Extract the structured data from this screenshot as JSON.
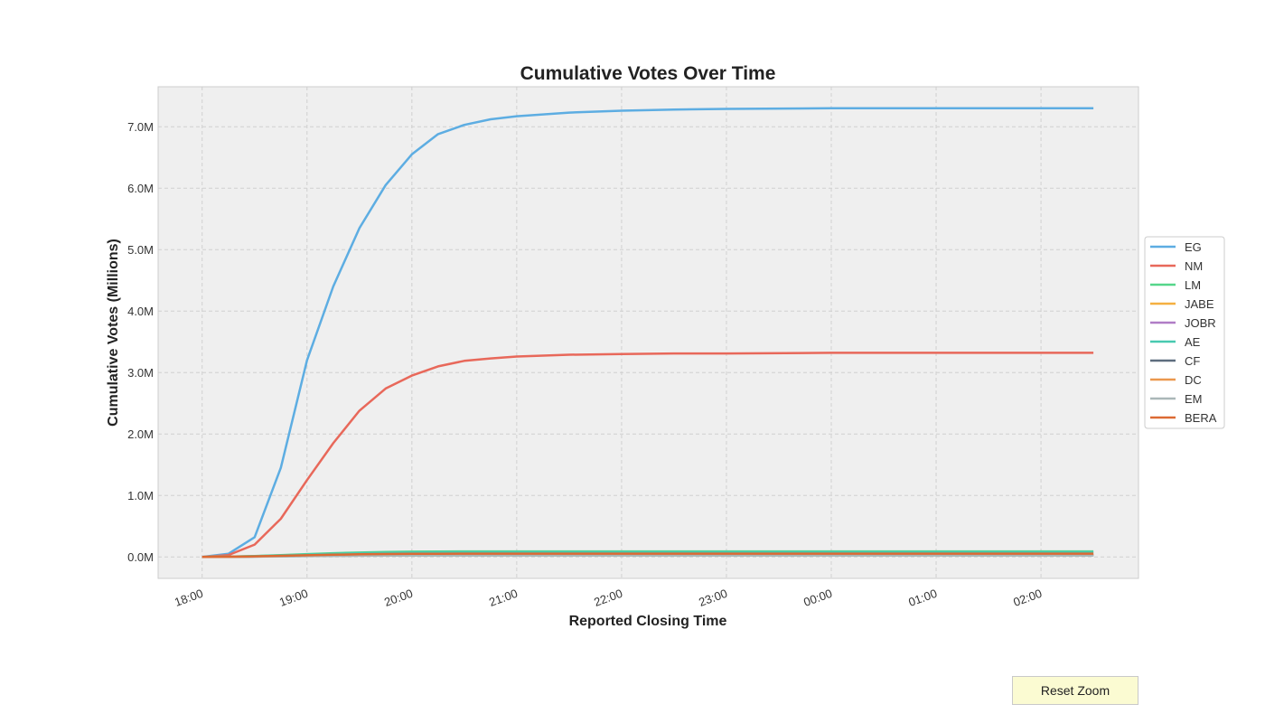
{
  "chart_data": {
    "type": "line",
    "title": "Cumulative Votes Over Time",
    "xlabel": "Reported Closing Time",
    "ylabel": "Cumulative Votes (Millions)",
    "x_ticks": [
      "18:00",
      "19:00",
      "20:00",
      "21:00",
      "22:00",
      "23:00",
      "00:00",
      "01:00",
      "02:00"
    ],
    "x_range_hours_since_18": [
      -0.42,
      8.93
    ],
    "y_ticks": [
      "0.0M",
      "1.0M",
      "2.0M",
      "3.0M",
      "4.0M",
      "5.0M",
      "6.0M",
      "7.0M"
    ],
    "ylim": [
      -0.35,
      7.65
    ],
    "grid": true,
    "legend_position": "right",
    "x": [
      "18:00",
      "18:15",
      "18:30",
      "18:45",
      "19:00",
      "19:15",
      "19:30",
      "19:45",
      "20:00",
      "20:15",
      "20:30",
      "20:45",
      "21:00",
      "21:30",
      "22:00",
      "22:30",
      "23:00",
      "00:00",
      "01:00",
      "02:00",
      "02:30"
    ],
    "series": [
      {
        "name": "EG",
        "color": "#5dade2",
        "values": [
          0,
          0.05,
          0.32,
          1.45,
          3.2,
          4.4,
          5.35,
          6.05,
          6.55,
          6.88,
          7.03,
          7.12,
          7.17,
          7.23,
          7.26,
          7.28,
          7.29,
          7.3,
          7.3,
          7.3,
          7.3
        ]
      },
      {
        "name": "NM",
        "color": "#e8685a",
        "values": [
          0,
          0.03,
          0.2,
          0.62,
          1.25,
          1.85,
          2.38,
          2.74,
          2.95,
          3.1,
          3.19,
          3.23,
          3.26,
          3.29,
          3.3,
          3.31,
          3.31,
          3.32,
          3.32,
          3.32,
          3.32
        ]
      },
      {
        "name": "LM",
        "color": "#55d68a",
        "values": [
          0,
          0.005,
          0.015,
          0.03,
          0.045,
          0.06,
          0.07,
          0.08,
          0.085,
          0.088,
          0.09,
          0.09,
          0.09,
          0.09,
          0.09,
          0.09,
          0.09,
          0.09,
          0.09,
          0.09,
          0.09
        ]
      },
      {
        "name": "JABE",
        "color": "#f5b041",
        "values": [
          0,
          0.003,
          0.008,
          0.015,
          0.02,
          0.025,
          0.03,
          0.033,
          0.035,
          0.036,
          0.037,
          0.037,
          0.037,
          0.037,
          0.037,
          0.037,
          0.037,
          0.037,
          0.037,
          0.037,
          0.037
        ]
      },
      {
        "name": "JOBR",
        "color": "#b07cc6",
        "values": [
          0,
          0.002,
          0.006,
          0.012,
          0.017,
          0.022,
          0.026,
          0.029,
          0.031,
          0.032,
          0.033,
          0.033,
          0.033,
          0.033,
          0.033,
          0.033,
          0.033,
          0.033,
          0.033,
          0.033,
          0.033
        ]
      },
      {
        "name": "AE",
        "color": "#48c9b0",
        "values": [
          0,
          0.004,
          0.012,
          0.025,
          0.038,
          0.05,
          0.06,
          0.068,
          0.072,
          0.075,
          0.076,
          0.077,
          0.077,
          0.077,
          0.077,
          0.077,
          0.077,
          0.077,
          0.077,
          0.077,
          0.077
        ]
      },
      {
        "name": "CF",
        "color": "#5d6d7e",
        "values": [
          0,
          0.002,
          0.005,
          0.01,
          0.015,
          0.019,
          0.022,
          0.024,
          0.026,
          0.027,
          0.027,
          0.027,
          0.027,
          0.027,
          0.027,
          0.027,
          0.027,
          0.027,
          0.027,
          0.027,
          0.027
        ]
      },
      {
        "name": "DC",
        "color": "#eb984e",
        "values": [
          0,
          0.002,
          0.006,
          0.012,
          0.018,
          0.023,
          0.027,
          0.03,
          0.032,
          0.033,
          0.034,
          0.034,
          0.034,
          0.034,
          0.034,
          0.034,
          0.034,
          0.034,
          0.034,
          0.034,
          0.034
        ]
      },
      {
        "name": "EM",
        "color": "#aab7b8",
        "values": [
          0,
          0.001,
          0.004,
          0.008,
          0.012,
          0.016,
          0.019,
          0.021,
          0.022,
          0.023,
          0.023,
          0.023,
          0.023,
          0.023,
          0.023,
          0.023,
          0.023,
          0.023,
          0.023,
          0.023,
          0.023
        ]
      },
      {
        "name": "BERA",
        "color": "#dc6a33",
        "values": [
          0,
          0.003,
          0.009,
          0.018,
          0.027,
          0.035,
          0.042,
          0.047,
          0.05,
          0.052,
          0.053,
          0.053,
          0.053,
          0.053,
          0.053,
          0.053,
          0.053,
          0.053,
          0.053,
          0.053,
          0.053
        ]
      }
    ]
  },
  "controls": {
    "reset_zoom_label": "Reset Zoom"
  }
}
